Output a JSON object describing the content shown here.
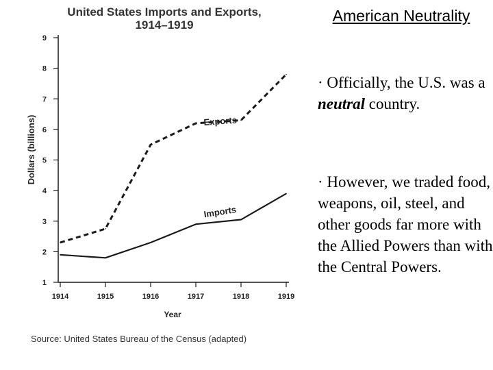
{
  "chart_data": {
    "type": "line",
    "title_line1": "United States Imports and Exports,",
    "title_line2": "1914–1919",
    "xlabel": "Year",
    "ylabel": "Dollars (billions)",
    "categories": [
      "1914",
      "1915",
      "1916",
      "1917",
      "1918",
      "1919"
    ],
    "y_ticks": [
      "1",
      "2",
      "3",
      "4",
      "5",
      "6",
      "7",
      "8",
      "9"
    ],
    "ylim": [
      1,
      9
    ],
    "series": [
      {
        "name": "Exports",
        "style": "dashed",
        "values": [
          2.3,
          2.75,
          5.5,
          6.2,
          6.3,
          7.8
        ]
      },
      {
        "name": "Imports",
        "style": "solid",
        "values": [
          1.9,
          1.8,
          2.3,
          2.9,
          3.05,
          3.9
        ]
      }
    ],
    "source": "Source: United States Bureau of the Census (adapted)"
  },
  "slide": {
    "title": "American Neutrality",
    "bullet1_prefix": "· Officially, the U.S. was a ",
    "bullet1_emphasis": "neutral",
    "bullet1_suffix": " country.",
    "bullet2": "· However, we traded food, weapons, oil, steel, and other goods far more with the Allied Powers than with the Central Powers."
  },
  "colors": {
    "line": "#1a1a1a",
    "text": "#000000",
    "background": "#ffffff"
  }
}
